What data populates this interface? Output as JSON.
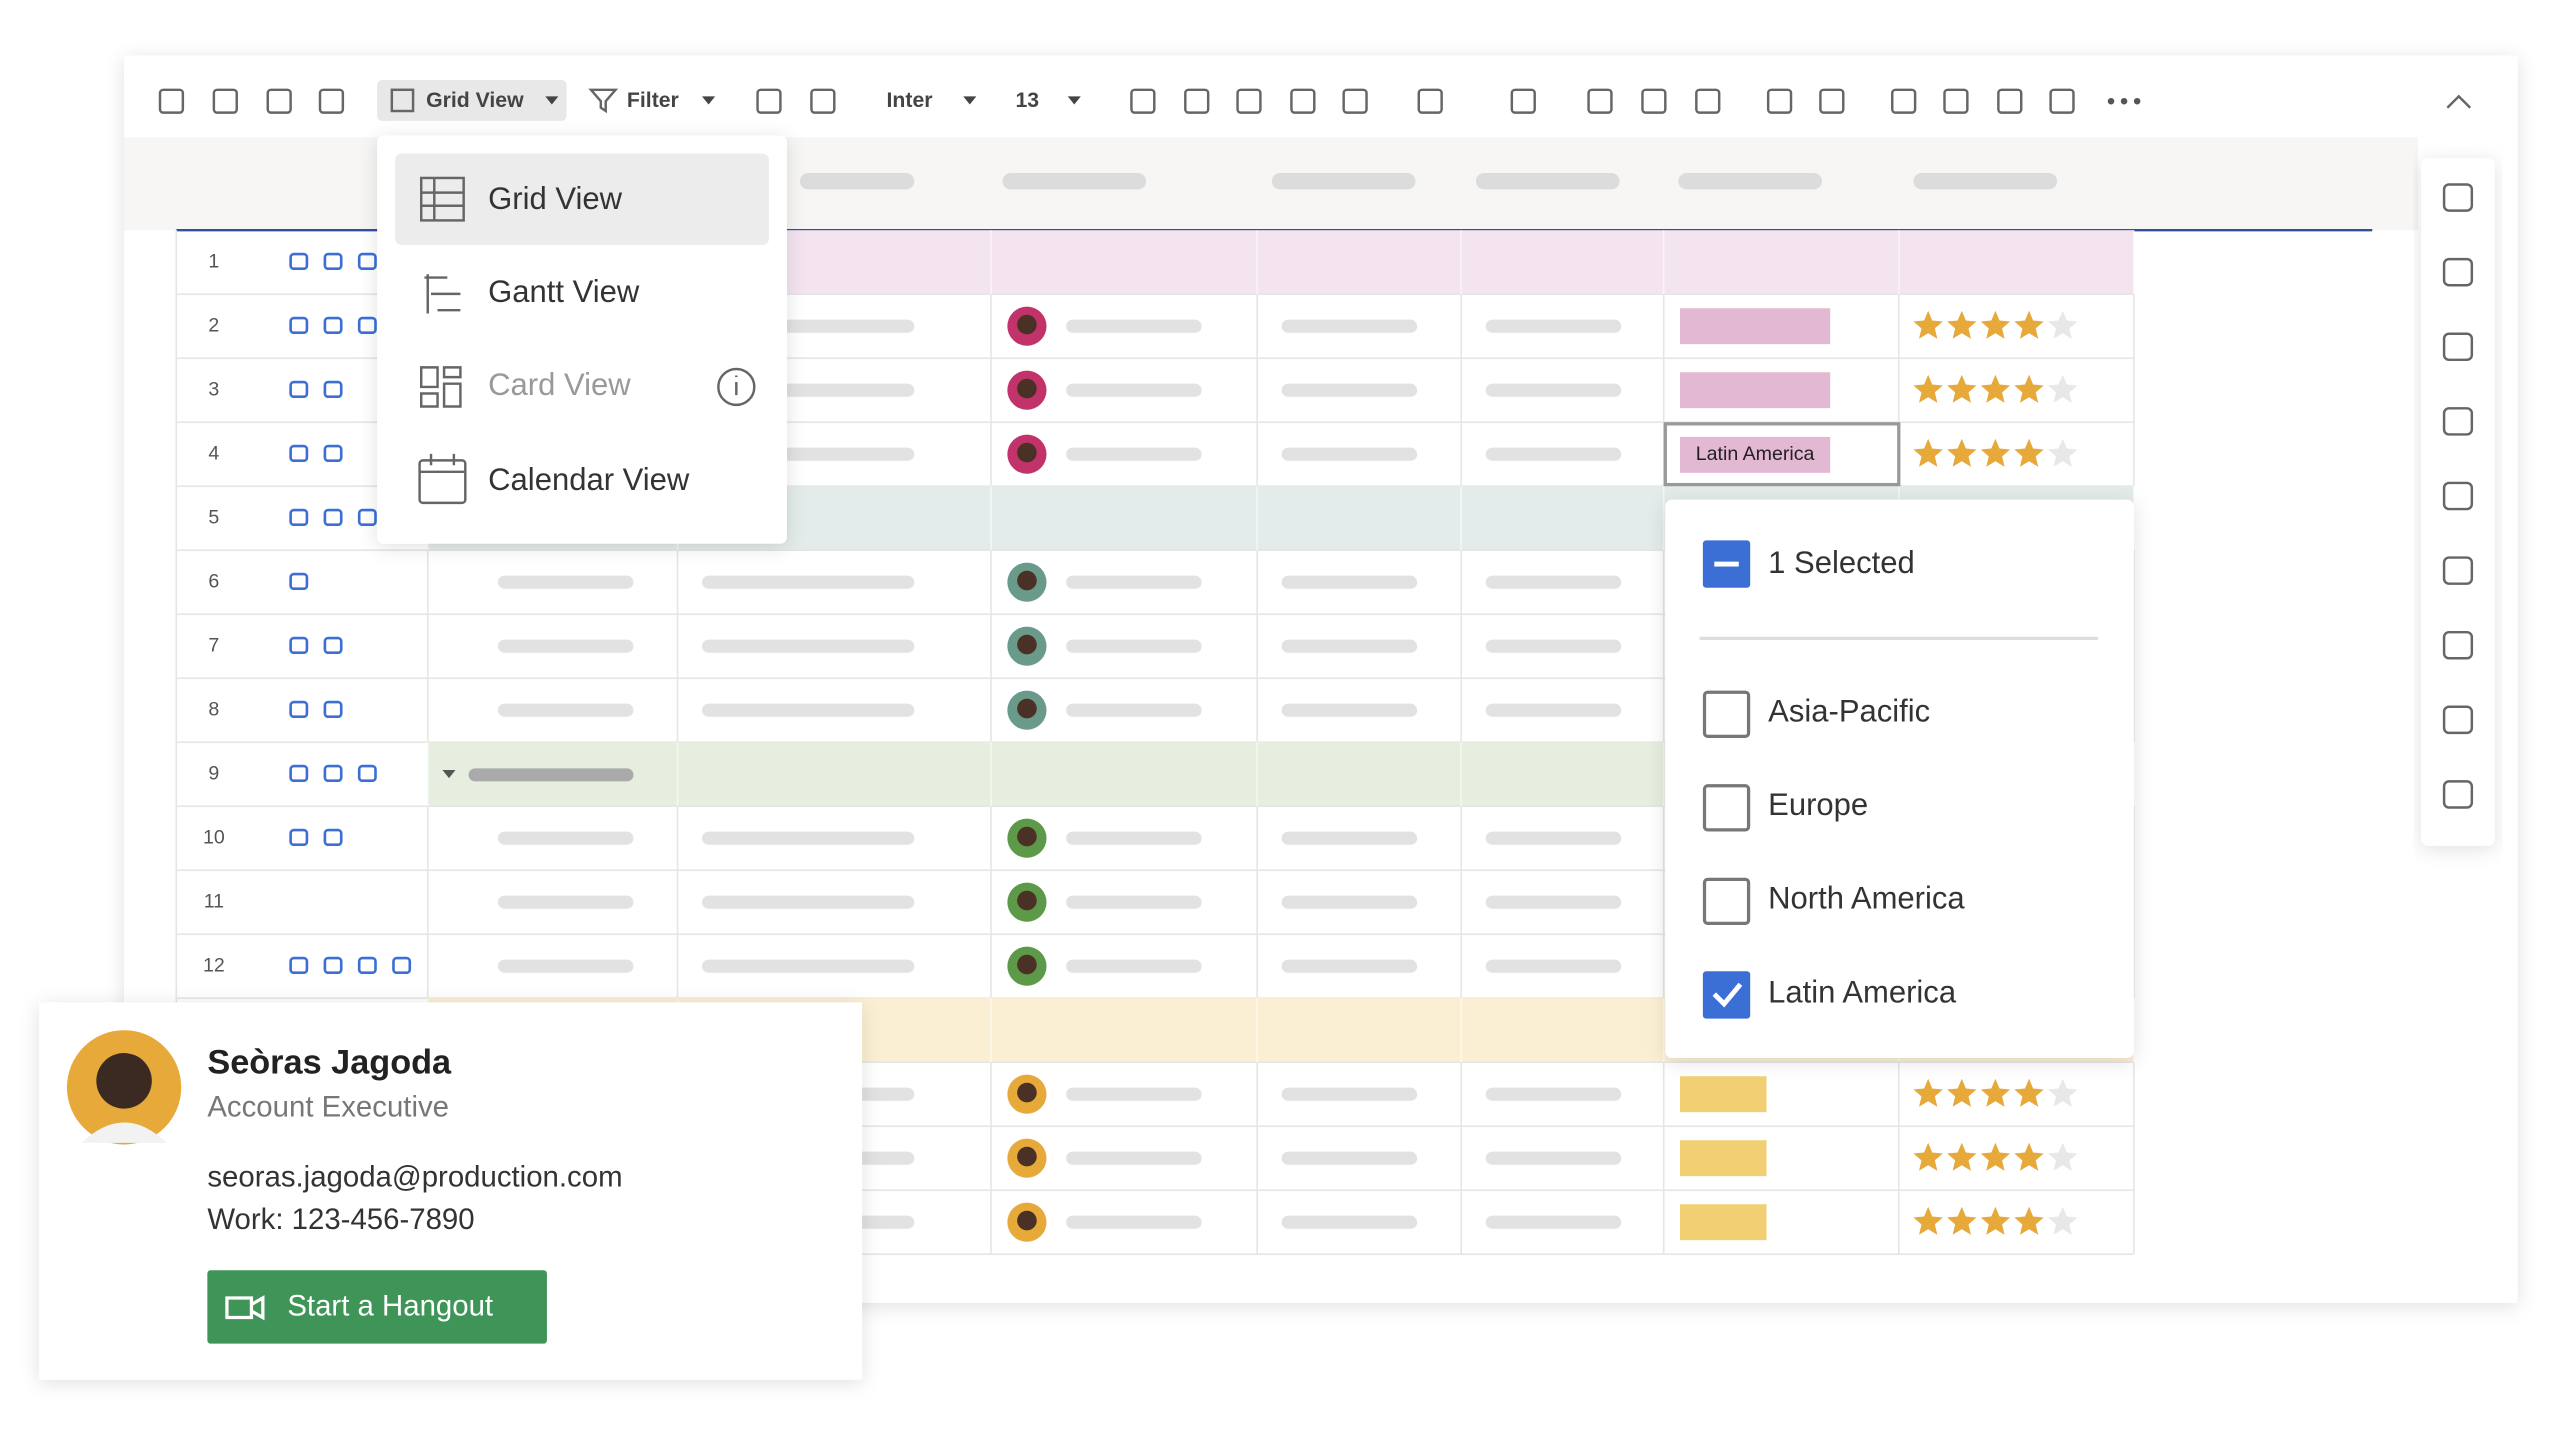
{
  "toolbar": {
    "view_button": "Grid View",
    "filter_button": "Filter",
    "font": "Inter",
    "font_size": "13"
  },
  "view_menu": {
    "items": [
      "Grid View",
      "Gantt View",
      "Card View",
      "Calendar View"
    ]
  },
  "grid": {
    "row_numbers": [
      "1",
      "2",
      "3",
      "4",
      "5",
      "6",
      "7",
      "8",
      "9",
      "10",
      "11",
      "12"
    ],
    "selected_cell_tag": "Latin America",
    "ratings": [
      4,
      4,
      4,
      4,
      4,
      4
    ]
  },
  "region_dropdown": {
    "summary": "1 Selected",
    "options": [
      {
        "label": "Asia-Pacific",
        "checked": false
      },
      {
        "label": "Europe",
        "checked": false
      },
      {
        "label": "North America",
        "checked": false
      },
      {
        "label": "Latin America",
        "checked": true
      }
    ]
  },
  "contact_card": {
    "name": "Seòras Jagoda",
    "role": "Account Executive",
    "email": "seoras.jagoda@production.com",
    "phone": "Work: 123-456-7890",
    "button": "Start a Hangout"
  }
}
